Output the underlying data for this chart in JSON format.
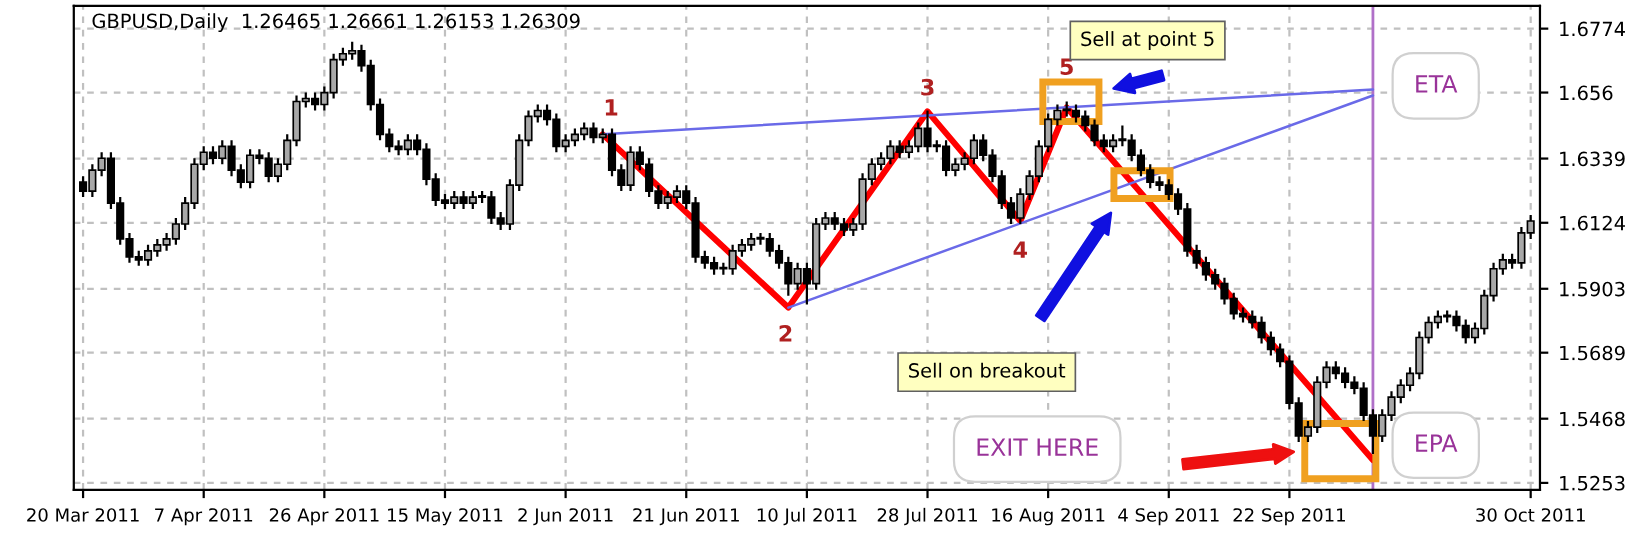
{
  "chart_data": {
    "type": "candlestick",
    "title": "GBPUSD,Daily  1.26465 1.26661 1.26153 1.26309",
    "categories": [
      "20 Mar 2011",
      null,
      null,
      null,
      null,
      null,
      null,
      null,
      null,
      null,
      null,
      null,
      null,
      "7 Apr 2011",
      null,
      null,
      null,
      null,
      null,
      null,
      null,
      null,
      null,
      null,
      null,
      null,
      "26 Apr 2011",
      null,
      null,
      null,
      null,
      null,
      null,
      null,
      null,
      null,
      null,
      null,
      null,
      "15 May 2011",
      null,
      null,
      null,
      null,
      null,
      null,
      null,
      null,
      null,
      null,
      null,
      null,
      "2 Jun 2011",
      null,
      null,
      null,
      null,
      null,
      null,
      null,
      null,
      null,
      null,
      null,
      null,
      "21 Jun 2011",
      null,
      null,
      null,
      null,
      null,
      null,
      null,
      null,
      null,
      null,
      null,
      null,
      "10 Jul 2011",
      null,
      null,
      null,
      null,
      null,
      null,
      null,
      null,
      null,
      null,
      null,
      null,
      "28 Jul 2011",
      null,
      null,
      null,
      null,
      null,
      null,
      null,
      null,
      null,
      null,
      null,
      null,
      "16 Aug 2011",
      null,
      null,
      null,
      null,
      null,
      null,
      null,
      null,
      null,
      null,
      null,
      null,
      "4 Sep 2011",
      null,
      null,
      null,
      null,
      null,
      null,
      null,
      null,
      null,
      null,
      null,
      null,
      "22 Sep 2011",
      null,
      null,
      null,
      null,
      null,
      null,
      null,
      null,
      null,
      null,
      null,
      null,
      null,
      null,
      null,
      null,
      null,
      null,
      null,
      null,
      null,
      null,
      null,
      null,
      null,
      "30 Oct 2011"
    ],
    "ohlc": [
      [
        1.626,
        1.628,
        1.621,
        1.623
      ],
      [
        1.623,
        1.632,
        1.621,
        1.63
      ],
      [
        1.63,
        1.636,
        1.628,
        1.634
      ],
      [
        1.634,
        1.636,
        1.617,
        1.619
      ],
      [
        1.619,
        1.621,
        1.605,
        1.607
      ],
      [
        1.607,
        1.609,
        1.599,
        1.601
      ],
      [
        1.601,
        1.603,
        1.598,
        1.6
      ],
      [
        1.6,
        1.605,
        1.598,
        1.603
      ],
      [
        1.603,
        1.607,
        1.601,
        1.605
      ],
      [
        1.605,
        1.609,
        1.603,
        1.607
      ],
      [
        1.607,
        1.614,
        1.605,
        1.612
      ],
      [
        1.612,
        1.621,
        1.61,
        1.619
      ],
      [
        1.619,
        1.634,
        1.617,
        1.632
      ],
      [
        1.632,
        1.638,
        1.63,
        1.636
      ],
      [
        1.636,
        1.638,
        1.632,
        1.634
      ],
      [
        1.634,
        1.64,
        1.632,
        1.638
      ],
      [
        1.638,
        1.64,
        1.628,
        1.63
      ],
      [
        1.63,
        1.632,
        1.624,
        1.626
      ],
      [
        1.626,
        1.637,
        1.624,
        1.635
      ],
      [
        1.635,
        1.637,
        1.632,
        1.634
      ],
      [
        1.634,
        1.636,
        1.626,
        1.628
      ],
      [
        1.628,
        1.634,
        1.626,
        1.632
      ],
      [
        1.632,
        1.642,
        1.63,
        1.64
      ],
      [
        1.64,
        1.655,
        1.638,
        1.653
      ],
      [
        1.653,
        1.656,
        1.651,
        1.654
      ],
      [
        1.654,
        1.656,
        1.65,
        1.652
      ],
      [
        1.652,
        1.658,
        1.65,
        1.656
      ],
      [
        1.656,
        1.669,
        1.654,
        1.667
      ],
      [
        1.667,
        1.671,
        1.665,
        1.669
      ],
      [
        1.669,
        1.673,
        1.667,
        1.67
      ],
      [
        1.67,
        1.672,
        1.663,
        1.665
      ],
      [
        1.665,
        1.667,
        1.65,
        1.652
      ],
      [
        1.652,
        1.654,
        1.64,
        1.642
      ],
      [
        1.642,
        1.644,
        1.636,
        1.638
      ],
      [
        1.638,
        1.64,
        1.635,
        1.637
      ],
      [
        1.637,
        1.642,
        1.635,
        1.64
      ],
      [
        1.64,
        1.642,
        1.635,
        1.637
      ],
      [
        1.637,
        1.639,
        1.625,
        1.627
      ],
      [
        1.627,
        1.629,
        1.618,
        1.62
      ],
      [
        1.62,
        1.622,
        1.617,
        1.619
      ],
      [
        1.619,
        1.623,
        1.617,
        1.621
      ],
      [
        1.621,
        1.623,
        1.617,
        1.619
      ],
      [
        1.619,
        1.623,
        1.617,
        1.621
      ],
      [
        1.621,
        1.623,
        1.619,
        1.621
      ],
      [
        1.621,
        1.623,
        1.612,
        1.614
      ],
      [
        1.614,
        1.616,
        1.61,
        1.612
      ],
      [
        1.612,
        1.627,
        1.61,
        1.625
      ],
      [
        1.625,
        1.642,
        1.623,
        1.64
      ],
      [
        1.64,
        1.65,
        1.638,
        1.648
      ],
      [
        1.648,
        1.652,
        1.646,
        1.65
      ],
      [
        1.65,
        1.652,
        1.645,
        1.647
      ],
      [
        1.647,
        1.649,
        1.636,
        1.638
      ],
      [
        1.638,
        1.642,
        1.636,
        1.64
      ],
      [
        1.64,
        1.644,
        1.638,
        1.642
      ],
      [
        1.642,
        1.646,
        1.64,
        1.644
      ],
      [
        1.644,
        1.646,
        1.639,
        1.641
      ],
      [
        1.641,
        1.644,
        1.639,
        1.642
      ],
      [
        1.642,
        1.644,
        1.628,
        1.63
      ],
      [
        1.63,
        1.632,
        1.623,
        1.625
      ],
      [
        1.625,
        1.638,
        1.623,
        1.636
      ],
      [
        1.636,
        1.638,
        1.63,
        1.632
      ],
      [
        1.632,
        1.634,
        1.621,
        1.623
      ],
      [
        1.623,
        1.625,
        1.617,
        1.619
      ],
      [
        1.619,
        1.623,
        1.617,
        1.621
      ],
      [
        1.621,
        1.625,
        1.619,
        1.623
      ],
      [
        1.623,
        1.625,
        1.617,
        1.619
      ],
      [
        1.619,
        1.621,
        1.599,
        1.601
      ],
      [
        1.601,
        1.603,
        1.597,
        1.599
      ],
      [
        1.599,
        1.601,
        1.595,
        1.597
      ],
      [
        1.597,
        1.599,
        1.595,
        1.597
      ],
      [
        1.597,
        1.605,
        1.595,
        1.603
      ],
      [
        1.603,
        1.607,
        1.601,
        1.605
      ],
      [
        1.605,
        1.609,
        1.603,
        1.607
      ],
      [
        1.607,
        1.609,
        1.605,
        1.607
      ],
      [
        1.607,
        1.609,
        1.601,
        1.603
      ],
      [
        1.603,
        1.605,
        1.597,
        1.599
      ],
      [
        1.599,
        1.601,
        1.588,
        1.592
      ],
      [
        1.592,
        1.599,
        1.59,
        1.597
      ],
      [
        1.597,
        1.599,
        1.585,
        1.592
      ],
      [
        1.592,
        1.614,
        1.59,
        1.612
      ],
      [
        1.612,
        1.616,
        1.61,
        1.614
      ],
      [
        1.614,
        1.616,
        1.61,
        1.612
      ],
      [
        1.612,
        1.614,
        1.608,
        1.61
      ],
      [
        1.61,
        1.614,
        1.608,
        1.612
      ],
      [
        1.612,
        1.629,
        1.61,
        1.627
      ],
      [
        1.627,
        1.634,
        1.625,
        1.632
      ],
      [
        1.632,
        1.636,
        1.63,
        1.634
      ],
      [
        1.634,
        1.64,
        1.632,
        1.638
      ],
      [
        1.638,
        1.64,
        1.634,
        1.636
      ],
      [
        1.636,
        1.64,
        1.634,
        1.638
      ],
      [
        1.638,
        1.646,
        1.636,
        1.644
      ],
      [
        1.644,
        1.65,
        1.636,
        1.638
      ],
      [
        1.638,
        1.64,
        1.636,
        1.638
      ],
      [
        1.638,
        1.64,
        1.628,
        1.63
      ],
      [
        1.63,
        1.634,
        1.628,
        1.632
      ],
      [
        1.632,
        1.636,
        1.63,
        1.634
      ],
      [
        1.634,
        1.642,
        1.632,
        1.64
      ],
      [
        1.64,
        1.642,
        1.633,
        1.635
      ],
      [
        1.635,
        1.637,
        1.626,
        1.628
      ],
      [
        1.628,
        1.63,
        1.617,
        1.619
      ],
      [
        1.619,
        1.621,
        1.612,
        1.614
      ],
      [
        1.614,
        1.624,
        1.612,
        1.622
      ],
      [
        1.622,
        1.63,
        1.62,
        1.628
      ],
      [
        1.628,
        1.64,
        1.626,
        1.638
      ],
      [
        1.638,
        1.649,
        1.636,
        1.647
      ],
      [
        1.647,
        1.652,
        1.645,
        1.65
      ],
      [
        1.65,
        1.653,
        1.648,
        1.65
      ],
      [
        1.65,
        1.652,
        1.646,
        1.648
      ],
      [
        1.648,
        1.65,
        1.643,
        1.645
      ],
      [
        1.645,
        1.647,
        1.638,
        1.64
      ],
      [
        1.64,
        1.642,
        1.636,
        1.638
      ],
      [
        1.638,
        1.642,
        1.636,
        1.64
      ],
      [
        1.64,
        1.645,
        1.638,
        1.64
      ],
      [
        1.64,
        1.642,
        1.633,
        1.635
      ],
      [
        1.635,
        1.637,
        1.628,
        1.63
      ],
      [
        1.63,
        1.632,
        1.624,
        1.626
      ],
      [
        1.626,
        1.628,
        1.623,
        1.625
      ],
      [
        1.625,
        1.627,
        1.62,
        1.622
      ],
      [
        1.622,
        1.624,
        1.615,
        1.617
      ],
      [
        1.617,
        1.619,
        1.601,
        1.603
      ],
      [
        1.603,
        1.605,
        1.597,
        1.599
      ],
      [
        1.599,
        1.601,
        1.593,
        1.595
      ],
      [
        1.595,
        1.597,
        1.59,
        1.592
      ],
      [
        1.592,
        1.594,
        1.585,
        1.587
      ],
      [
        1.587,
        1.589,
        1.58,
        1.582
      ],
      [
        1.582,
        1.584,
        1.579,
        1.581
      ],
      [
        1.581,
        1.583,
        1.577,
        1.579
      ],
      [
        1.579,
        1.581,
        1.572,
        1.574
      ],
      [
        1.574,
        1.576,
        1.568,
        1.57
      ],
      [
        1.57,
        1.572,
        1.564,
        1.566
      ],
      [
        1.566,
        1.568,
        1.55,
        1.552
      ],
      [
        1.552,
        1.554,
        1.539,
        1.541
      ],
      [
        1.541,
        1.546,
        1.539,
        1.544
      ],
      [
        1.544,
        1.561,
        1.542,
        1.559
      ],
      [
        1.559,
        1.566,
        1.557,
        1.564
      ],
      [
        1.564,
        1.566,
        1.56,
        1.562
      ],
      [
        1.562,
        1.564,
        1.557,
        1.559
      ],
      [
        1.559,
        1.561,
        1.555,
        1.557
      ],
      [
        1.557,
        1.559,
        1.546,
        1.548
      ],
      [
        1.548,
        1.55,
        1.535,
        1.541
      ],
      [
        1.541,
        1.55,
        1.539,
        1.548
      ],
      [
        1.548,
        1.556,
        1.546,
        1.554
      ],
      [
        1.554,
        1.56,
        1.552,
        1.558
      ],
      [
        1.558,
        1.564,
        1.556,
        1.562
      ],
      [
        1.562,
        1.576,
        1.56,
        1.574
      ],
      [
        1.574,
        1.581,
        1.572,
        1.579
      ],
      [
        1.579,
        1.583,
        1.577,
        1.581
      ],
      [
        1.581,
        1.583,
        1.579,
        1.581
      ],
      [
        1.581,
        1.583,
        1.576,
        1.578
      ],
      [
        1.578,
        1.58,
        1.572,
        1.574
      ],
      [
        1.574,
        1.579,
        1.572,
        1.577
      ],
      [
        1.577,
        1.59,
        1.575,
        1.588
      ],
      [
        1.588,
        1.599,
        1.586,
        1.597
      ],
      [
        1.597,
        1.602,
        1.595,
        1.6
      ],
      [
        1.6,
        1.602,
        1.597,
        1.599
      ],
      [
        1.599,
        1.611,
        1.597,
        1.609
      ],
      [
        1.609,
        1.615,
        1.607,
        1.613
      ]
    ],
    "series": [
      {
        "type": "line",
        "color": "#ff0000",
        "values": [
          null,
          null,
          null,
          null,
          null,
          null,
          null,
          null,
          null,
          null,
          null,
          null,
          null,
          null,
          null,
          null,
          null,
          null,
          null,
          null,
          null,
          null,
          null,
          null,
          null,
          null,
          null,
          null,
          null,
          null,
          null,
          null,
          null,
          null,
          null,
          null,
          null,
          null,
          null,
          null,
          null,
          null,
          null,
          null,
          null,
          null,
          null,
          null,
          null,
          null,
          null,
          null,
          null,
          null,
          null,
          null,
          1.642,
          null,
          null,
          null,
          null,
          null,
          null,
          null,
          null,
          null,
          null,
          null,
          null,
          null,
          null,
          null,
          null,
          null,
          null,
          null,
          1.584,
          null,
          null,
          null,
          null,
          null,
          null,
          null,
          null,
          null,
          null,
          null,
          null,
          null,
          null,
          1.6497,
          null,
          null,
          null,
          null,
          null,
          null,
          null,
          null,
          null,
          1.613,
          null,
          null,
          null,
          null,
          1.651,
          null,
          null,
          null,
          null,
          null,
          null,
          null,
          null,
          null,
          null,
          null,
          null,
          null,
          null,
          null,
          null,
          null,
          null,
          null,
          null,
          null,
          null,
          null,
          null,
          null,
          null,
          null,
          null,
          null,
          null,
          null,
          null,
          1.533,
          null,
          null,
          null,
          null,
          null,
          null,
          null,
          null,
          null,
          null,
          null,
          null,
          null,
          null,
          null,
          null,
          null
        ]
      },
      {
        "type": "line",
        "color": "#6a6ae8",
        "values": [
          null,
          null,
          null,
          null,
          null,
          null,
          null,
          null,
          null,
          null,
          null,
          null,
          null,
          null,
          null,
          null,
          null,
          null,
          null,
          null,
          null,
          null,
          null,
          null,
          null,
          null,
          null,
          null,
          null,
          null,
          null,
          null,
          null,
          null,
          null,
          null,
          null,
          null,
          null,
          null,
          null,
          null,
          null,
          null,
          null,
          null,
          null,
          null,
          null,
          null,
          null,
          null,
          null,
          null,
          null,
          null,
          1.642,
          null,
          null,
          null,
          null,
          null,
          null,
          null,
          null,
          null,
          null,
          null,
          null,
          null,
          null,
          null,
          null,
          null,
          null,
          null,
          null,
          null,
          null,
          null,
          null,
          null,
          null,
          null,
          null,
          null,
          null,
          null,
          null,
          null,
          null,
          null,
          null,
          null,
          null,
          null,
          null,
          null,
          null,
          null,
          null,
          null,
          null,
          null,
          null,
          null,
          null,
          null,
          null,
          null,
          null,
          null,
          null,
          null,
          null,
          null,
          null,
          null,
          null,
          null,
          null,
          null,
          null,
          null,
          null,
          null,
          null,
          null,
          null,
          null,
          null,
          null,
          null,
          null,
          null,
          null,
          null,
          null,
          null,
          1.657,
          null,
          null,
          null,
          null,
          null,
          null,
          null,
          null,
          null,
          null,
          null,
          null,
          null,
          null,
          null,
          null,
          null
        ]
      },
      {
        "type": "line",
        "color": "#6a6ae8",
        "values": [
          null,
          null,
          null,
          null,
          null,
          null,
          null,
          null,
          null,
          null,
          null,
          null,
          null,
          null,
          null,
          null,
          null,
          null,
          null,
          null,
          null,
          null,
          null,
          null,
          null,
          null,
          null,
          null,
          null,
          null,
          null,
          null,
          null,
          null,
          null,
          null,
          null,
          null,
          null,
          null,
          null,
          null,
          null,
          null,
          null,
          null,
          null,
          null,
          null,
          null,
          null,
          null,
          null,
          null,
          null,
          null,
          null,
          null,
          null,
          null,
          null,
          null,
          null,
          null,
          null,
          null,
          null,
          null,
          null,
          null,
          null,
          null,
          null,
          null,
          null,
          null,
          1.584,
          null,
          null,
          null,
          null,
          null,
          null,
          null,
          null,
          null,
          null,
          null,
          null,
          null,
          null,
          null,
          null,
          null,
          null,
          null,
          null,
          null,
          null,
          null,
          null,
          null,
          null,
          null,
          null,
          null,
          null,
          null,
          null,
          null,
          null,
          null,
          null,
          null,
          null,
          null,
          null,
          null,
          null,
          null,
          null,
          null,
          null,
          null,
          null,
          null,
          null,
          null,
          null,
          null,
          null,
          null,
          null,
          null,
          null,
          null,
          null,
          null,
          null,
          1.655,
          null,
          null,
          null,
          null,
          null,
          null,
          null,
          null,
          null,
          null,
          null,
          null,
          null,
          null,
          null,
          null,
          null
        ]
      }
    ],
    "annotations": [
      "1",
      "2",
      "3",
      "4",
      "5",
      "Sell at point 5",
      "Sell on breakout",
      "EXIT HERE",
      "ETA",
      "EPA"
    ],
    "ylim": [
      1.523,
      1.685
    ],
    "yticks": [
      1.5253,
      1.5468,
      1.5689,
      1.5903,
      1.6124,
      1.6339,
      1.656,
      1.6774
    ],
    "grid": true
  }
}
